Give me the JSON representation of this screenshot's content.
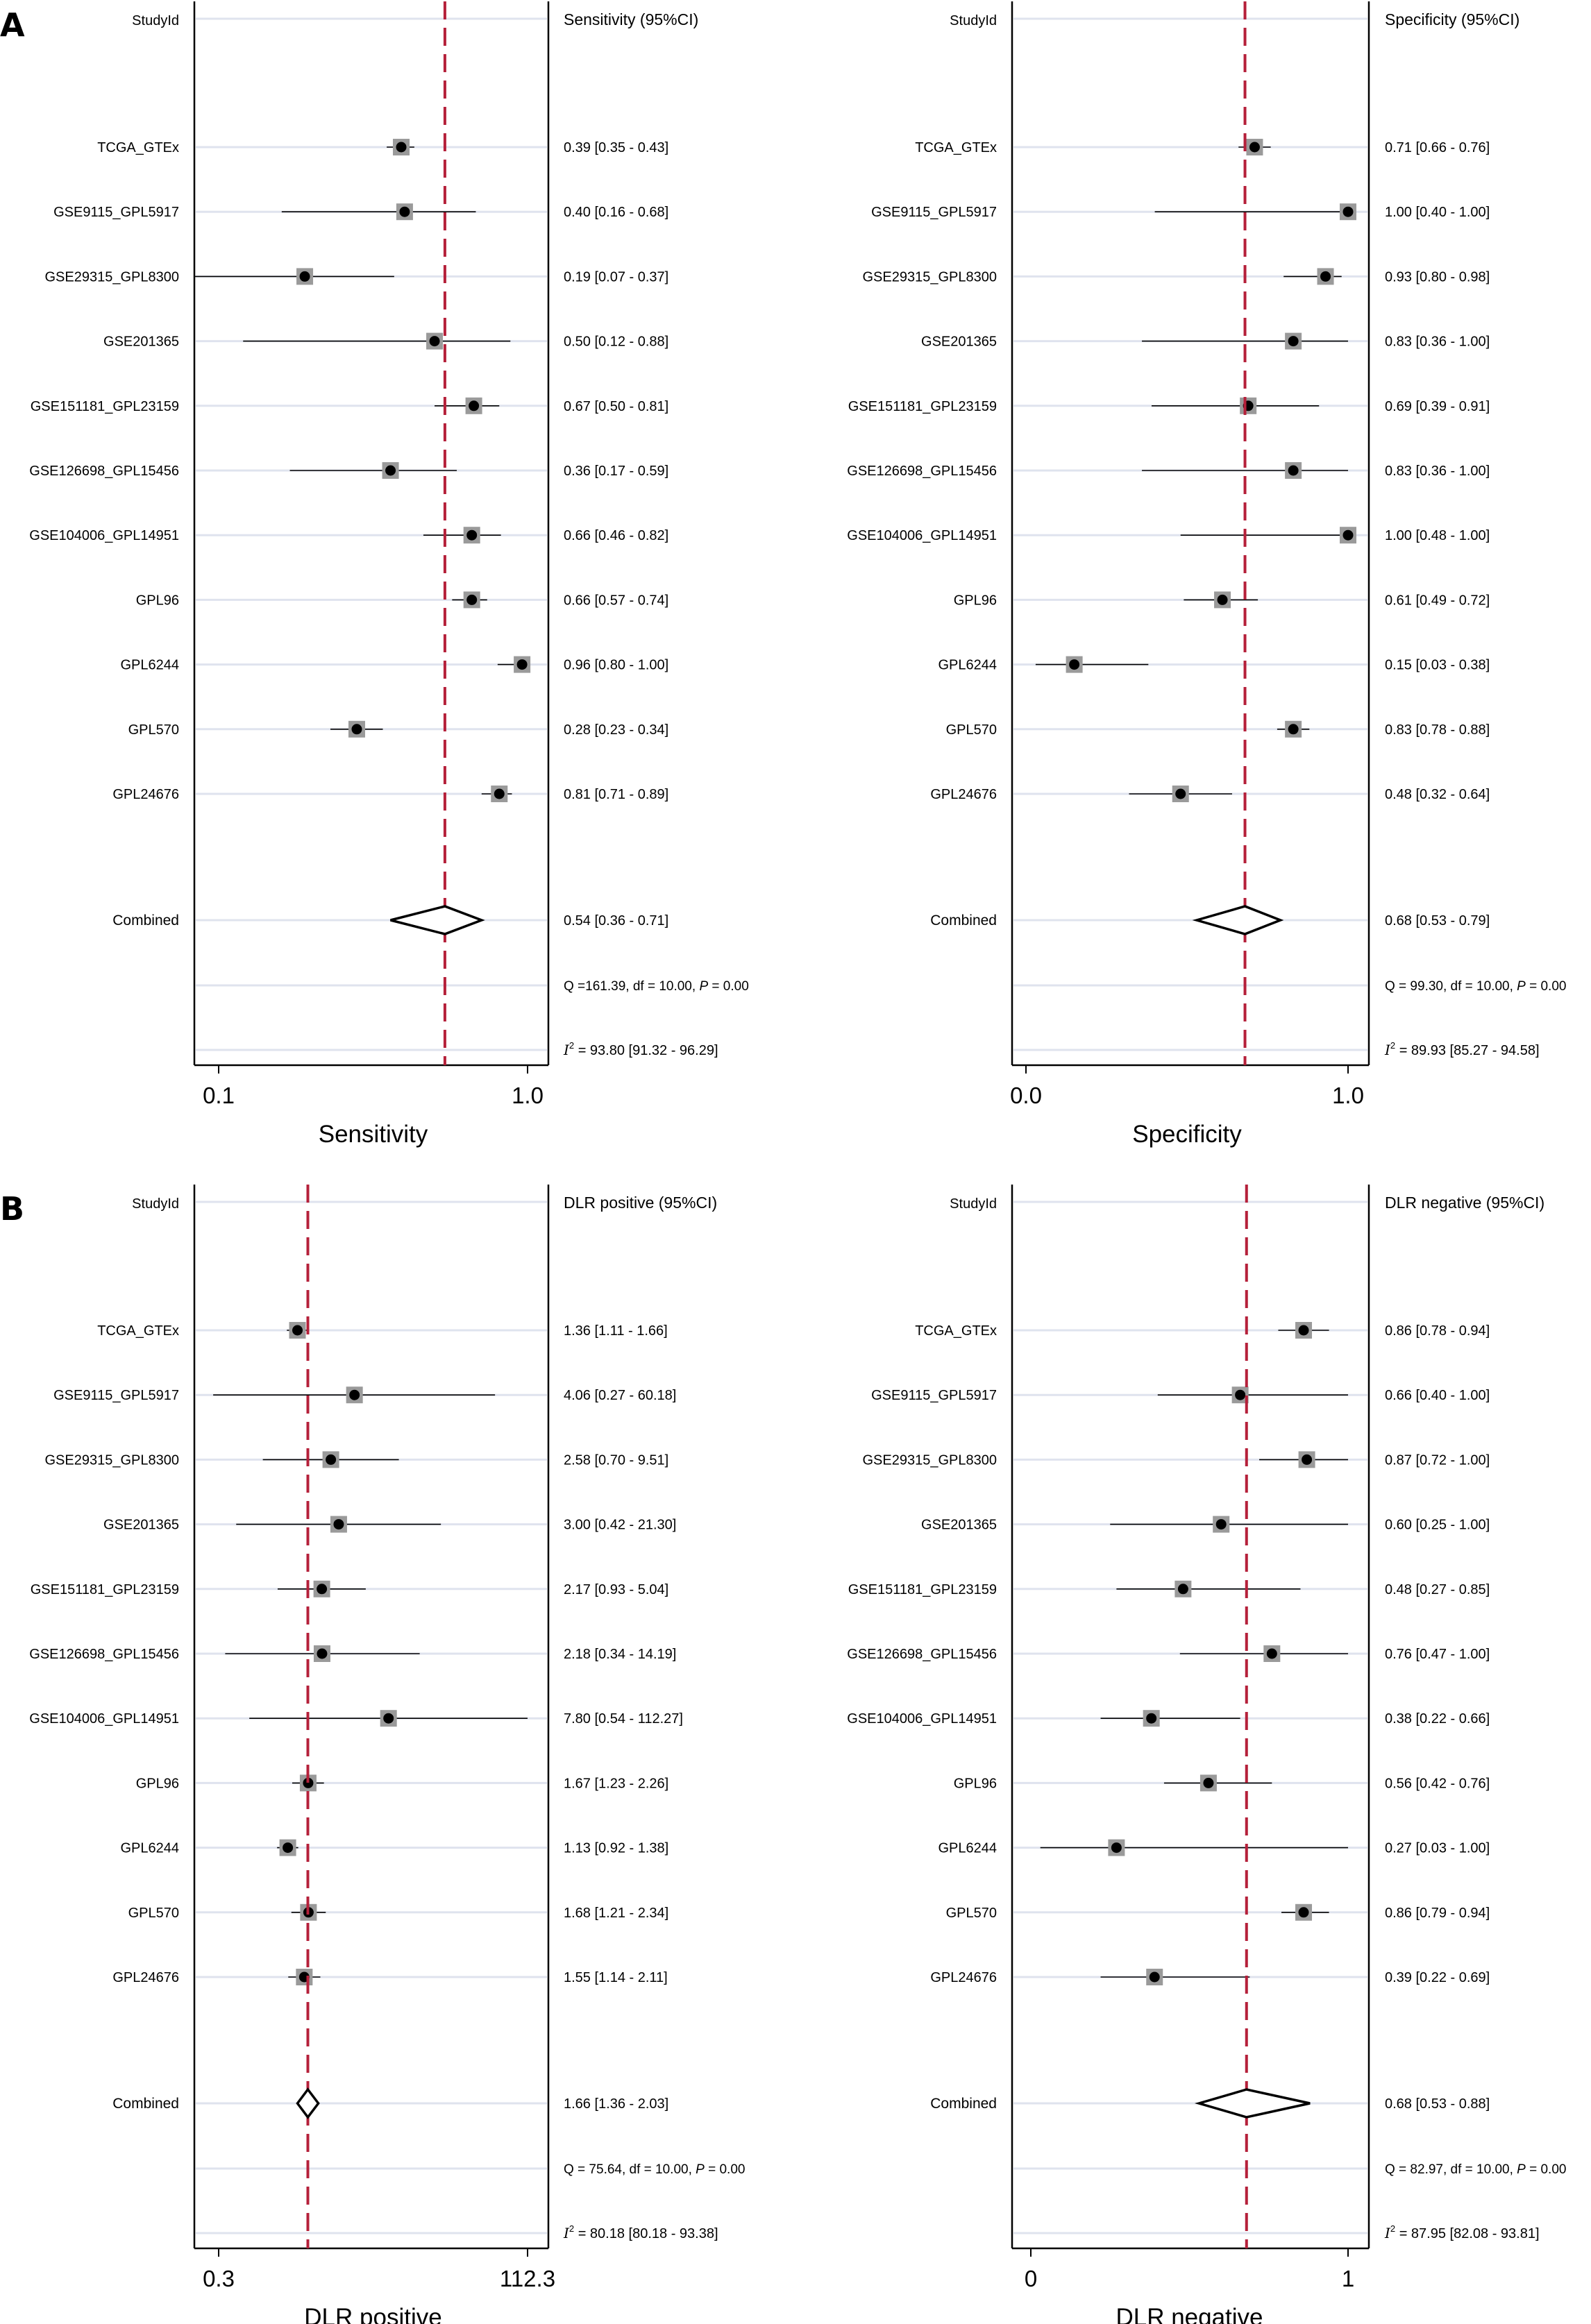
{
  "figure": {
    "panel_labels": [
      "A",
      "B"
    ]
  },
  "chart_data": [
    {
      "type": "forest",
      "panel": "A",
      "scale": "log",
      "studyid_header": "StudyId",
      "estimate_header": "Sensitivity (95%CI)",
      "xlabel": "Sensitivity",
      "xticks": [
        "0.1",
        "1.0"
      ],
      "xlim": [
        0.1,
        1.0
      ],
      "reference_line": 0.54,
      "studies": [
        {
          "name": "TCGA_GTEx",
          "est": 0.39,
          "lo": 0.35,
          "hi": 0.43,
          "label": "0.39 [0.35 - 0.43]"
        },
        {
          "name": "GSE9115_GPL5917",
          "est": 0.4,
          "lo": 0.16,
          "hi": 0.68,
          "label": "0.40 [0.16 - 0.68]"
        },
        {
          "name": "GSE29315_GPL8300",
          "est": 0.19,
          "lo": 0.07,
          "hi": 0.37,
          "label": "0.19 [0.07 - 0.37]"
        },
        {
          "name": "GSE201365",
          "est": 0.5,
          "lo": 0.12,
          "hi": 0.88,
          "label": "0.50 [0.12 - 0.88]"
        },
        {
          "name": "GSE151181_GPL23159",
          "est": 0.67,
          "lo": 0.5,
          "hi": 0.81,
          "label": "0.67 [0.50 - 0.81]"
        },
        {
          "name": "GSE126698_GPL15456",
          "est": 0.36,
          "lo": 0.17,
          "hi": 0.59,
          "label": "0.36 [0.17 - 0.59]"
        },
        {
          "name": "GSE104006_GPL14951",
          "est": 0.66,
          "lo": 0.46,
          "hi": 0.82,
          "label": "0.66 [0.46 - 0.82]"
        },
        {
          "name": "GPL96",
          "est": 0.66,
          "lo": 0.57,
          "hi": 0.74,
          "label": "0.66 [0.57 - 0.74]"
        },
        {
          "name": "GPL6244",
          "est": 0.96,
          "lo": 0.8,
          "hi": 1.0,
          "label": "0.96 [0.80 - 1.00]"
        },
        {
          "name": "GPL570",
          "est": 0.28,
          "lo": 0.23,
          "hi": 0.34,
          "label": "0.28 [0.23 - 0.34]"
        },
        {
          "name": "GPL24676",
          "est": 0.81,
          "lo": 0.71,
          "hi": 0.89,
          "label": "0.81 [0.71 - 0.89]"
        }
      ],
      "combined": {
        "name": "Combined",
        "est": 0.54,
        "lo": 0.36,
        "hi": 0.71,
        "label": "0.54 [0.36 - 0.71]"
      },
      "q_stat": "Q =161.39, df = 10.00, P =  0.00",
      "i2_stat": "I2 = 93.80 [91.32 - 96.29]"
    },
    {
      "type": "forest",
      "panel": "A",
      "scale": "linear",
      "studyid_header": "StudyId",
      "estimate_header": "Specificity (95%CI)",
      "xlabel": "Specificity",
      "xticks": [
        "0.0",
        "1.0"
      ],
      "xlim": [
        0.0,
        1.0
      ],
      "reference_line": 0.68,
      "studies": [
        {
          "name": "TCGA_GTEx",
          "est": 0.71,
          "lo": 0.66,
          "hi": 0.76,
          "label": "0.71 [0.66 - 0.76]"
        },
        {
          "name": "GSE9115_GPL5917",
          "est": 1.0,
          "lo": 0.4,
          "hi": 1.0,
          "label": "1.00 [0.40 - 1.00]"
        },
        {
          "name": "GSE29315_GPL8300",
          "est": 0.93,
          "lo": 0.8,
          "hi": 0.98,
          "label": "0.93 [0.80 - 0.98]"
        },
        {
          "name": "GSE201365",
          "est": 0.83,
          "lo": 0.36,
          "hi": 1.0,
          "label": "0.83 [0.36 - 1.00]"
        },
        {
          "name": "GSE151181_GPL23159",
          "est": 0.69,
          "lo": 0.39,
          "hi": 0.91,
          "label": "0.69 [0.39 - 0.91]"
        },
        {
          "name": "GSE126698_GPL15456",
          "est": 0.83,
          "lo": 0.36,
          "hi": 1.0,
          "label": "0.83 [0.36 - 1.00]"
        },
        {
          "name": "GSE104006_GPL14951",
          "est": 1.0,
          "lo": 0.48,
          "hi": 1.0,
          "label": "1.00 [0.48 - 1.00]"
        },
        {
          "name": "GPL96",
          "est": 0.61,
          "lo": 0.49,
          "hi": 0.72,
          "label": "0.61 [0.49 - 0.72]"
        },
        {
          "name": "GPL6244",
          "est": 0.15,
          "lo": 0.03,
          "hi": 0.38,
          "label": "0.15 [0.03 - 0.38]"
        },
        {
          "name": "GPL570",
          "est": 0.83,
          "lo": 0.78,
          "hi": 0.88,
          "label": "0.83 [0.78 - 0.88]"
        },
        {
          "name": "GPL24676",
          "est": 0.48,
          "lo": 0.32,
          "hi": 0.64,
          "label": "0.48 [0.32 - 0.64]"
        }
      ],
      "combined": {
        "name": "Combined",
        "est": 0.68,
        "lo": 0.53,
        "hi": 0.79,
        "label": "0.68 [0.53 - 0.79]"
      },
      "q_stat": "Q = 99.30, df = 10.00, P =  0.00",
      "i2_stat": "I2 = 89.93 [85.27 - 94.58]"
    },
    {
      "type": "forest",
      "panel": "B",
      "scale": "log",
      "studyid_header": "StudyId",
      "estimate_header": "DLR positive (95%CI)",
      "xlabel": "DLR positive",
      "xticks": [
        "0.3",
        "112.3"
      ],
      "xlim": [
        0.3,
        112.3
      ],
      "reference_line": 1.66,
      "studies": [
        {
          "name": "TCGA_GTEx",
          "est": 1.36,
          "lo": 1.11,
          "hi": 1.66,
          "label": "1.36 [1.11 - 1.66]"
        },
        {
          "name": "GSE9115_GPL5917",
          "est": 4.06,
          "lo": 0.27,
          "hi": 60.18,
          "label": "4.06 [0.27 - 60.18]"
        },
        {
          "name": "GSE29315_GPL8300",
          "est": 2.58,
          "lo": 0.7,
          "hi": 9.51,
          "label": "2.58 [0.70 - 9.51]"
        },
        {
          "name": "GSE201365",
          "est": 3.0,
          "lo": 0.42,
          "hi": 21.3,
          "label": "3.00 [0.42 - 21.30]"
        },
        {
          "name": "GSE151181_GPL23159",
          "est": 2.17,
          "lo": 0.93,
          "hi": 5.04,
          "label": "2.17 [0.93 - 5.04]"
        },
        {
          "name": "GSE126698_GPL15456",
          "est": 2.18,
          "lo": 0.34,
          "hi": 14.19,
          "label": "2.18 [0.34 - 14.19]"
        },
        {
          "name": "GSE104006_GPL14951",
          "est": 7.8,
          "lo": 0.54,
          "hi": 112.27,
          "label": "7.80 [0.54 - 112.27]"
        },
        {
          "name": "GPL96",
          "est": 1.67,
          "lo": 1.23,
          "hi": 2.26,
          "label": "1.67 [1.23 - 2.26]"
        },
        {
          "name": "GPL6244",
          "est": 1.13,
          "lo": 0.92,
          "hi": 1.38,
          "label": "1.13 [0.92 - 1.38]"
        },
        {
          "name": "GPL570",
          "est": 1.68,
          "lo": 1.21,
          "hi": 2.34,
          "label": "1.68 [1.21 - 2.34]"
        },
        {
          "name": "GPL24676",
          "est": 1.55,
          "lo": 1.14,
          "hi": 2.11,
          "label": "1.55 [1.14 - 2.11]"
        }
      ],
      "combined": {
        "name": "Combined",
        "est": 1.66,
        "lo": 1.36,
        "hi": 2.03,
        "label": "1.66 [1.36 - 2.03]"
      },
      "q_stat": "Q = 75.64, df = 10.00, P =  0.00",
      "i2_stat": "I2 = 80.18 [80.18 - 93.38]"
    },
    {
      "type": "forest",
      "panel": "B",
      "scale": "linear",
      "studyid_header": "StudyId",
      "estimate_header": "DLR negative (95%CI)",
      "xlabel": "DLR negative",
      "xticks": [
        "0",
        "1"
      ],
      "xlim": [
        0,
        1
      ],
      "reference_line": 0.68,
      "studies": [
        {
          "name": "TCGA_GTEx",
          "est": 0.86,
          "lo": 0.78,
          "hi": 0.94,
          "label": "0.86 [0.78 - 0.94]"
        },
        {
          "name": "GSE9115_GPL5917",
          "est": 0.66,
          "lo": 0.4,
          "hi": 1.0,
          "label": "0.66 [0.40 - 1.00]"
        },
        {
          "name": "GSE29315_GPL8300",
          "est": 0.87,
          "lo": 0.72,
          "hi": 1.0,
          "label": "0.87 [0.72 - 1.00]"
        },
        {
          "name": "GSE201365",
          "est": 0.6,
          "lo": 0.25,
          "hi": 1.0,
          "label": "0.60 [0.25 - 1.00]"
        },
        {
          "name": "GSE151181_GPL23159",
          "est": 0.48,
          "lo": 0.27,
          "hi": 0.85,
          "label": "0.48 [0.27 - 0.85]"
        },
        {
          "name": "GSE126698_GPL15456",
          "est": 0.76,
          "lo": 0.47,
          "hi": 1.0,
          "label": "0.76 [0.47 - 1.00]"
        },
        {
          "name": "GSE104006_GPL14951",
          "est": 0.38,
          "lo": 0.22,
          "hi": 0.66,
          "label": "0.38 [0.22 - 0.66]"
        },
        {
          "name": "GPL96",
          "est": 0.56,
          "lo": 0.42,
          "hi": 0.76,
          "label": "0.56 [0.42 - 0.76]"
        },
        {
          "name": "GPL6244",
          "est": 0.27,
          "lo": 0.03,
          "hi": 1.0,
          "label": "0.27 [0.03 - 1.00]"
        },
        {
          "name": "GPL570",
          "est": 0.86,
          "lo": 0.79,
          "hi": 0.94,
          "label": "0.86 [0.79 - 0.94]"
        },
        {
          "name": "GPL24676",
          "est": 0.39,
          "lo": 0.22,
          "hi": 0.69,
          "label": "0.39 [0.22 - 0.69]"
        }
      ],
      "combined": {
        "name": "Combined",
        "est": 0.68,
        "lo": 0.53,
        "hi": 0.88,
        "label": "0.68 [0.53 - 0.88]"
      },
      "q_stat": "Q = 82.97, df = 10.00, P =  0.00",
      "i2_stat": "I2 = 87.95 [82.08 - 93.81]"
    }
  ],
  "colors": {
    "reference_line": "#b5203a",
    "row_band": "#dfe3ee",
    "marker_box": "#9a9a9a",
    "point": "#000000",
    "axis": "#000000"
  }
}
